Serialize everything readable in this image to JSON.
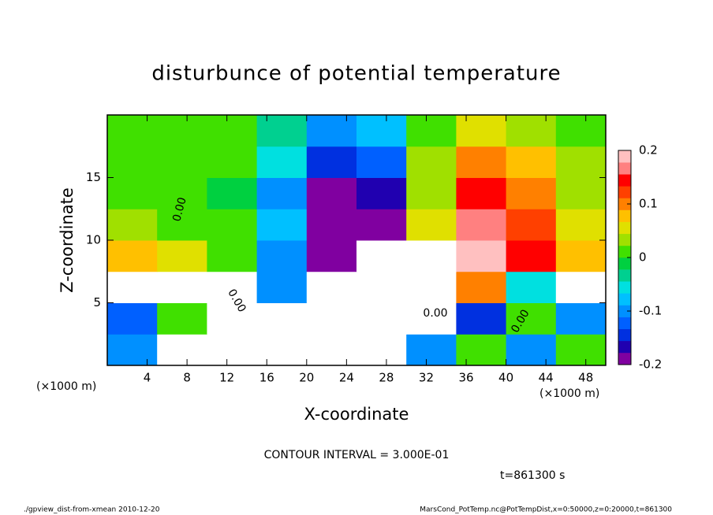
{
  "chart_data": {
    "type": "heatmap",
    "title": "disturbunce of potential temperature",
    "x_label": "X-coordinate",
    "y_label": "Z-coordinate",
    "y_unit_label": "(×1000 m)",
    "x_unit_label": "(×1000 m)",
    "xlim": [
      0,
      50
    ],
    "ylim": [
      0,
      20
    ],
    "xticks": [
      4,
      8,
      12,
      16,
      20,
      24,
      28,
      32,
      36,
      40,
      44,
      48
    ],
    "yticks": [
      5,
      10,
      15
    ],
    "xbins": [
      0,
      5,
      10,
      15,
      20,
      25,
      30,
      35,
      40,
      45,
      50
    ],
    "ybins": [
      0,
      2.5,
      5,
      7.5,
      10,
      12.5,
      15,
      17.5,
      20
    ],
    "z": [
      [
        -0.1,
        0.25,
        0.25,
        0.25,
        0.25,
        0.25,
        -0.1,
        0.0,
        -0.1,
        0.0
      ],
      [
        -0.12,
        0.0,
        0.25,
        0.25,
        0.25,
        0.25,
        0.25,
        -0.15,
        0.0,
        -0.1
      ],
      [
        0.25,
        0.25,
        0.25,
        -0.1,
        0.25,
        0.25,
        0.25,
        0.1,
        -0.05,
        0.25
      ],
      [
        0.08,
        0.06,
        0.02,
        -0.1,
        -0.2,
        0.25,
        0.25,
        0.19,
        0.14,
        0.08
      ],
      [
        0.03,
        0.02,
        0.0,
        -0.08,
        -0.19,
        -0.18,
        0.05,
        0.16,
        0.13,
        0.06
      ],
      [
        0.02,
        0.0,
        -0.01,
        -0.1,
        -0.18,
        -0.17,
        0.04,
        0.15,
        0.1,
        0.04
      ],
      [
        0.0,
        0.02,
        0.0,
        -0.06,
        -0.15,
        -0.12,
        0.03,
        0.11,
        0.07,
        0.03
      ],
      [
        0.0,
        0.01,
        0.0,
        -0.03,
        -0.1,
        -0.07,
        0.02,
        0.06,
        0.04,
        0.02
      ]
    ],
    "clim": [
      -0.2,
      0.2
    ],
    "cticks": [
      -0.2,
      -0.1,
      0,
      0.1,
      0.2
    ],
    "colors": [
      "#8000a0",
      "#2000b0",
      "#0030e0",
      "#0060ff",
      "#0090ff",
      "#00c0ff",
      "#00e0e0",
      "#00d090",
      "#00d040",
      "#40e000",
      "#a0e000",
      "#e0e000",
      "#ffc000",
      "#ff8000",
      "#ff4000",
      "#ff0000",
      "#ff8080",
      "#ffc0c0"
    ],
    "out_of_range_color": "#ffffff",
    "annotations": [
      "0.00",
      "0.00",
      "0.00",
      "0.00"
    ],
    "contour_interval": "CONTOUR INTERVAL = 3.000E-01",
    "time_label": "t=861300 s",
    "footer_left": "./gpview_dist-from-xmean  2010-12-20",
    "footer_right": "MarsCond_PotTemp.nc@PotTempDist,x=0:50000,z=0:20000,t=861300"
  }
}
